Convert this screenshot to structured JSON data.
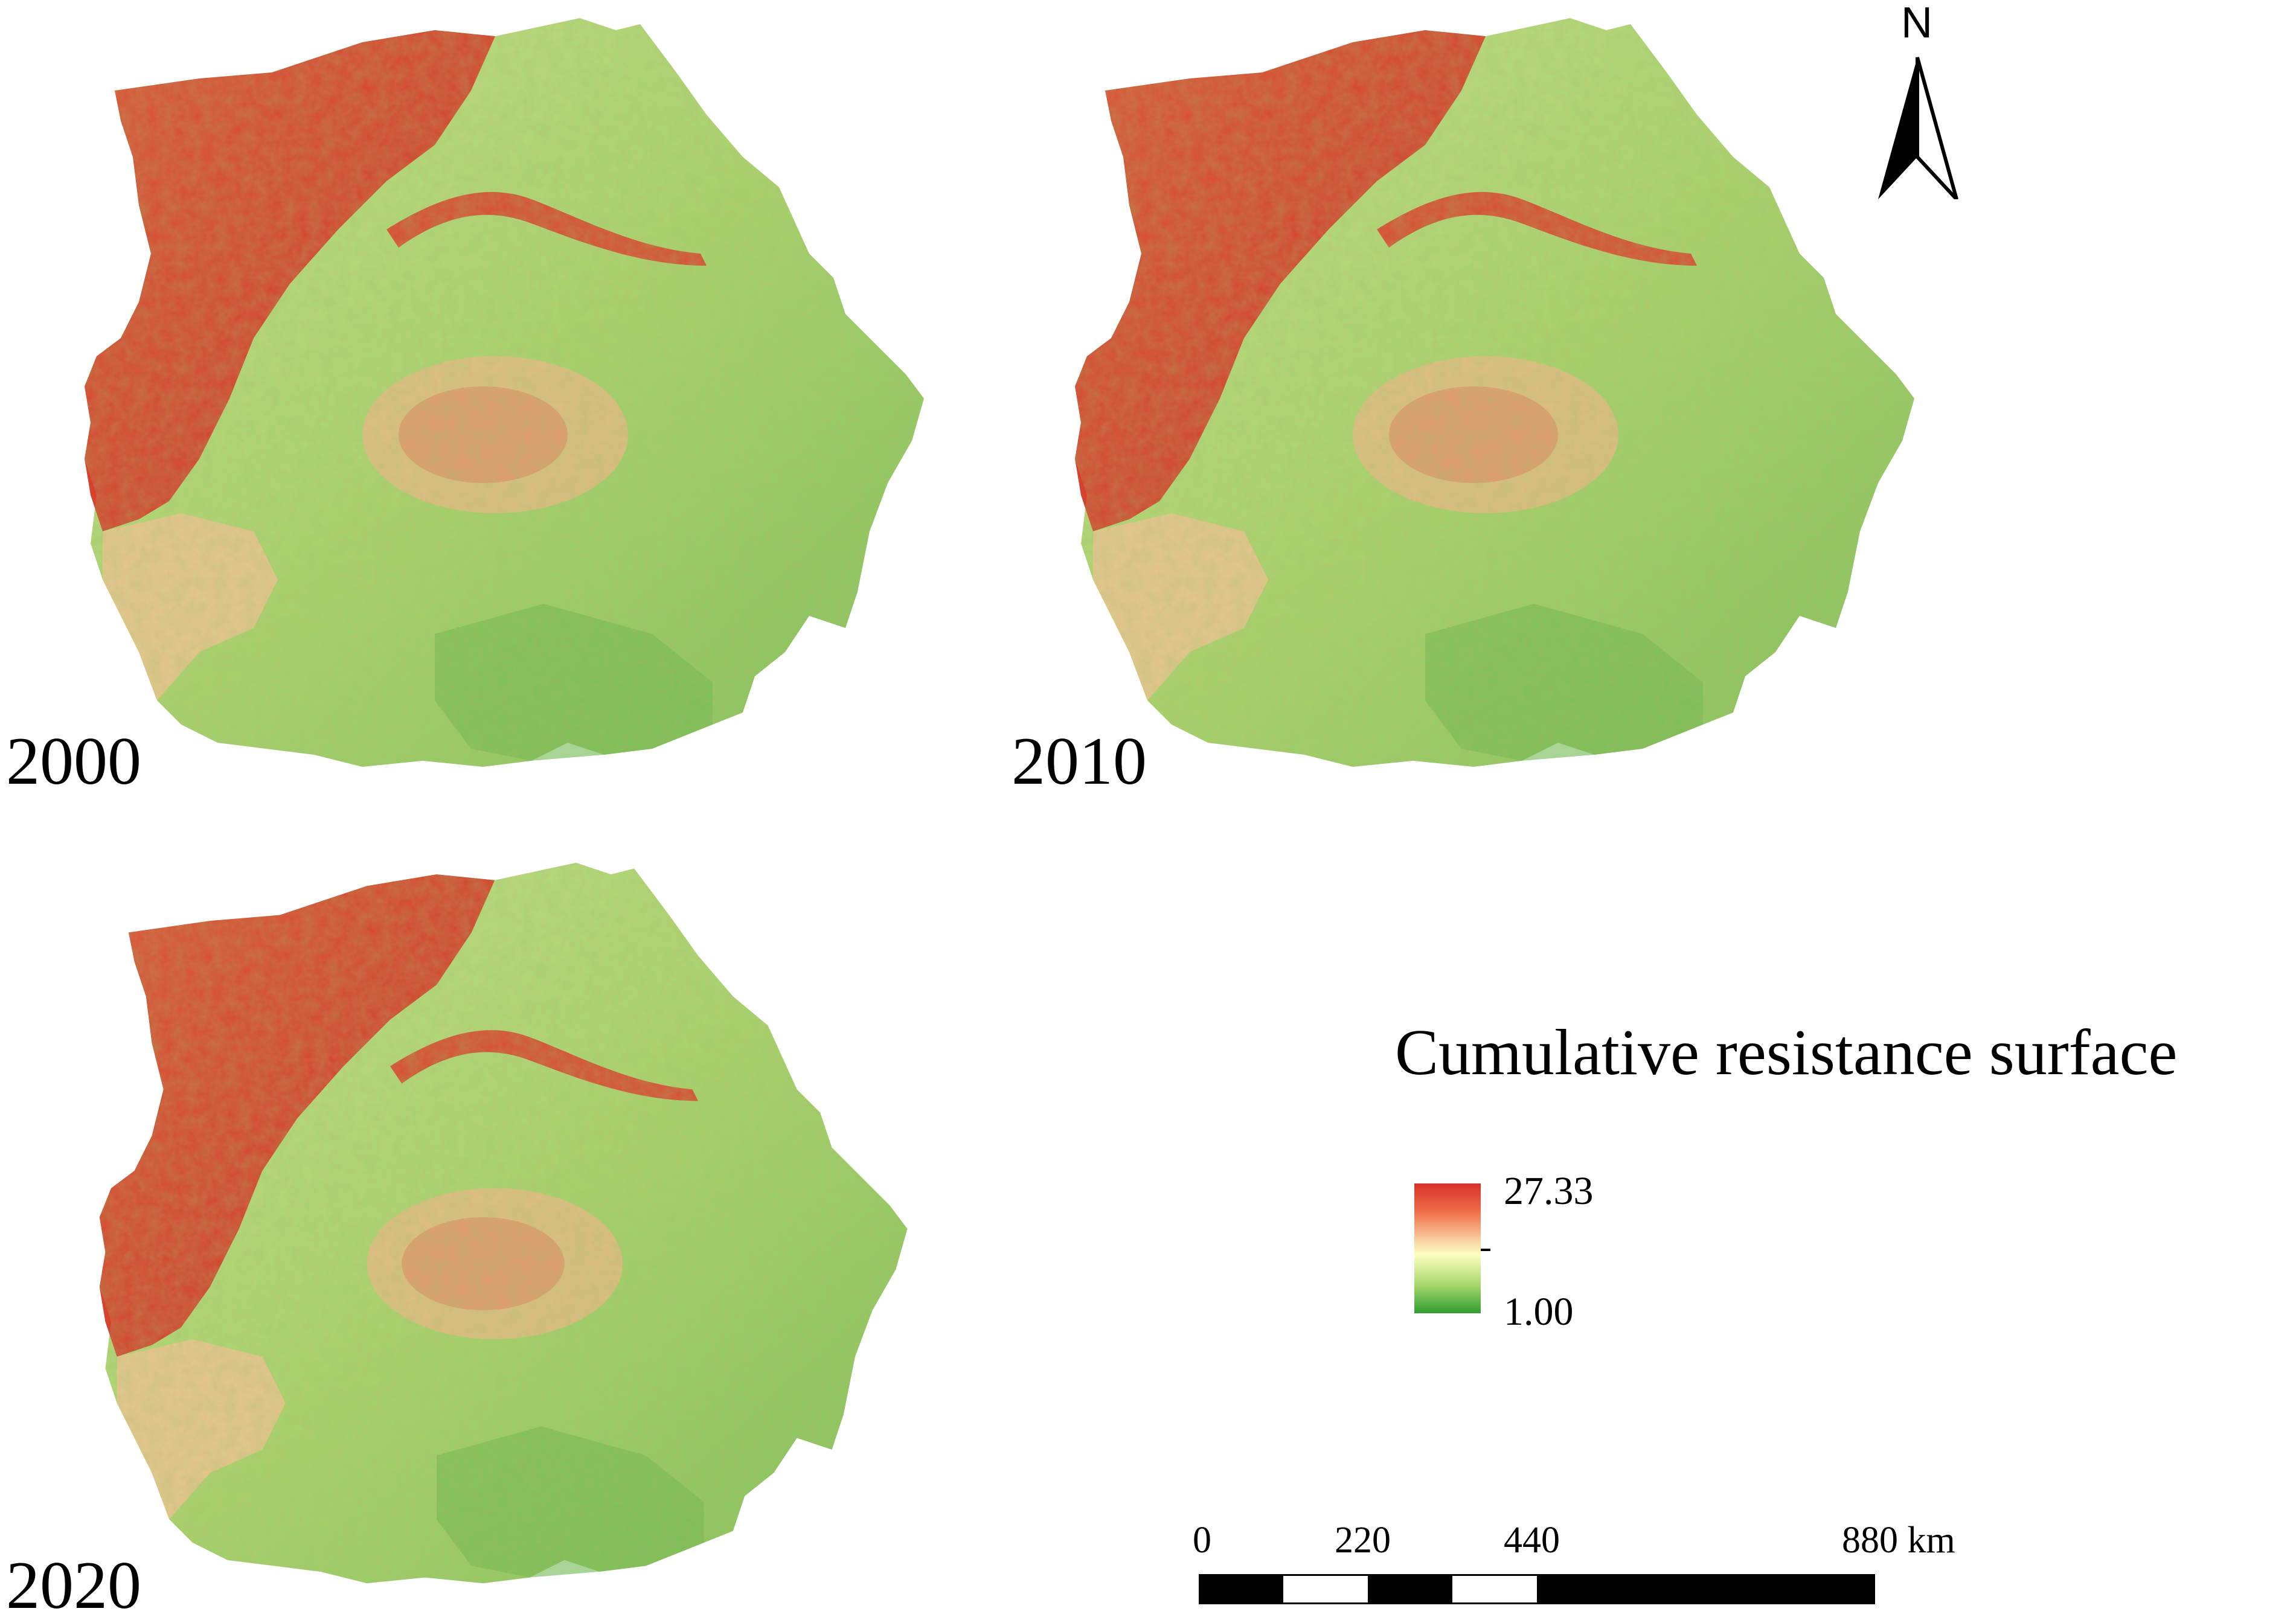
{
  "panels": [
    {
      "year": "2000"
    },
    {
      "year": "2010"
    },
    {
      "year": "2020"
    }
  ],
  "north_arrow": {
    "letter": "N"
  },
  "legend": {
    "title": "Cumulative resistance surface",
    "max_label": "27.33",
    "min_label": "1.00",
    "colors": {
      "high": "#d73027",
      "mid": "#fefec0",
      "low": "#2f9e30"
    }
  },
  "scale_bar": {
    "labels": [
      "0",
      "220",
      "440",
      "880 km"
    ]
  }
}
